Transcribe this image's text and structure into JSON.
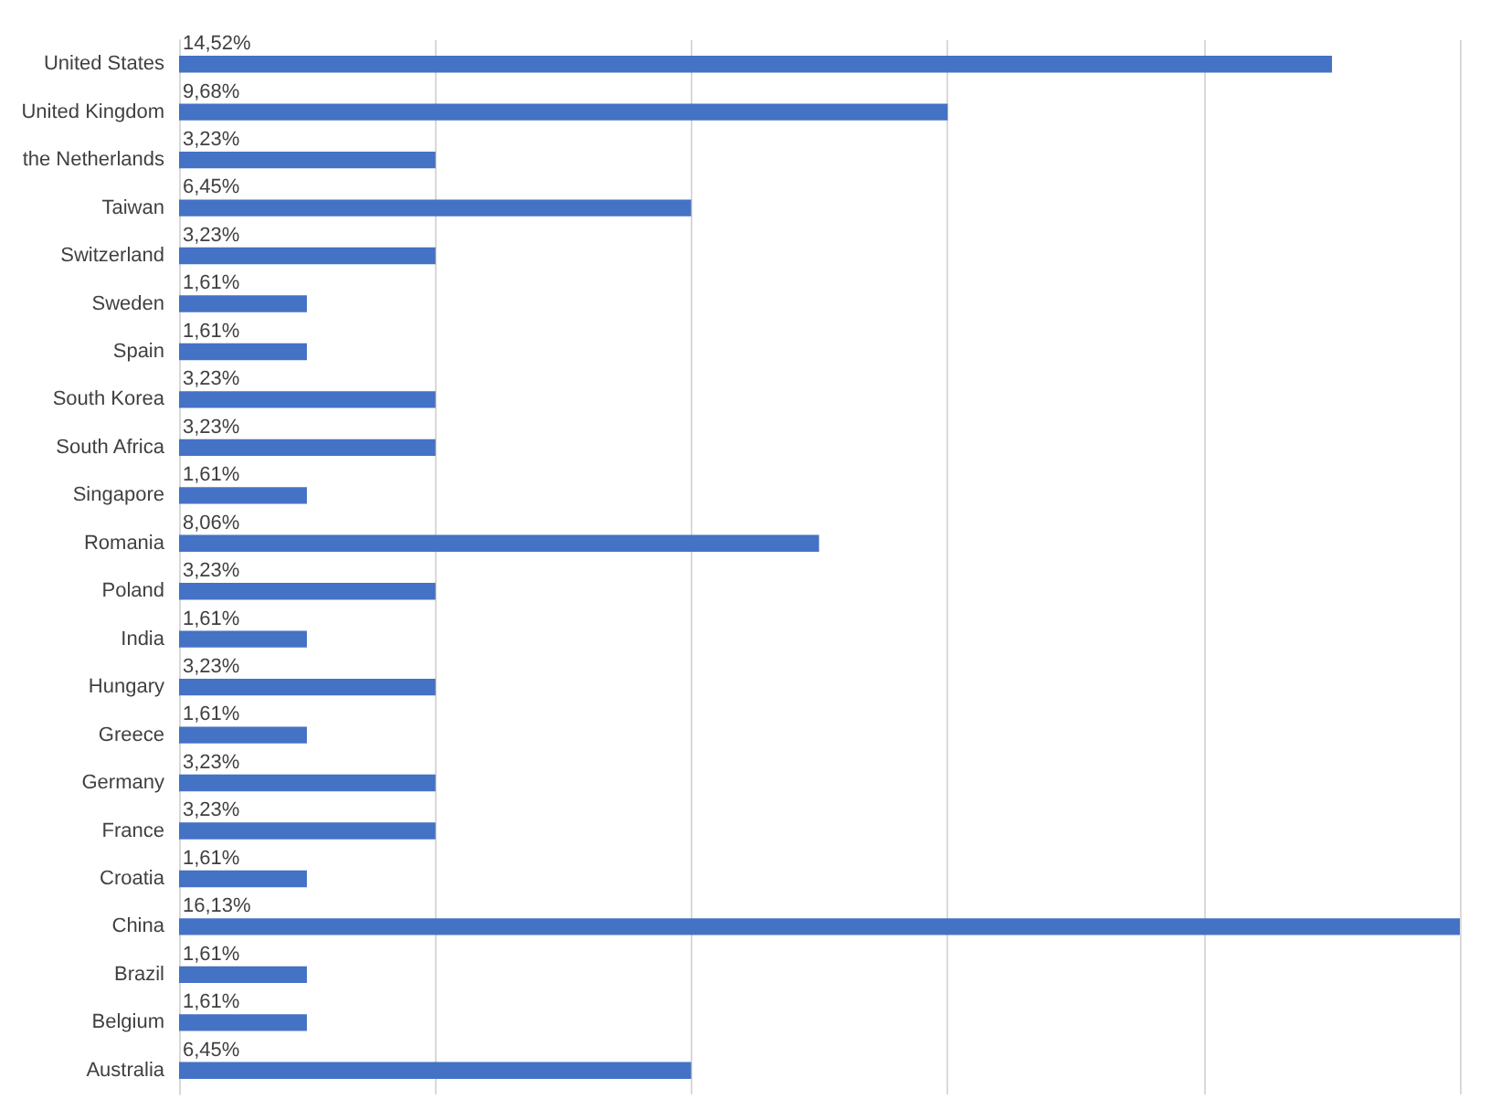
{
  "chart_data": {
    "type": "bar",
    "orientation": "horizontal",
    "categories": [
      "United States",
      "United Kingdom",
      "the Netherlands",
      "Taiwan",
      "Switzerland",
      "Sweden",
      "Spain",
      "South Korea",
      "South Africa",
      "Singapore",
      "Romania",
      "Poland",
      "India",
      "Hungary",
      "Greece",
      "Germany",
      "France",
      "Croatia",
      "China",
      "Brazil",
      "Belgium",
      "Australia"
    ],
    "values": [
      14.52,
      9.68,
      3.23,
      6.45,
      3.23,
      1.61,
      1.61,
      3.23,
      3.23,
      1.61,
      8.06,
      3.23,
      1.61,
      3.23,
      1.61,
      3.23,
      3.23,
      1.61,
      16.13,
      1.61,
      1.61,
      6.45
    ],
    "value_labels": [
      "14,52%",
      "9,68%",
      "3,23%",
      "6,45%",
      "3,23%",
      "1,61%",
      "1,61%",
      "3,23%",
      "3,23%",
      "1,61%",
      "8,06%",
      "3,23%",
      "1,61%",
      "3,23%",
      "1,61%",
      "3,23%",
      "3,23%",
      "1,61%",
      "16,13%",
      "1,61%",
      "1,61%",
      "6,45%"
    ],
    "color": "#4472c4",
    "xlim": [
      0,
      16.13
    ],
    "xticks": [
      {
        "value": 0,
        "label": null
      },
      {
        "value": 3.226,
        "label": null
      },
      {
        "value": 6.452,
        "label": null
      },
      {
        "value": 9.678,
        "label": null
      },
      {
        "value": 12.904,
        "label": null
      },
      {
        "value": 16.13,
        "label": null
      }
    ],
    "grid": "x",
    "tick_labels": "y"
  }
}
